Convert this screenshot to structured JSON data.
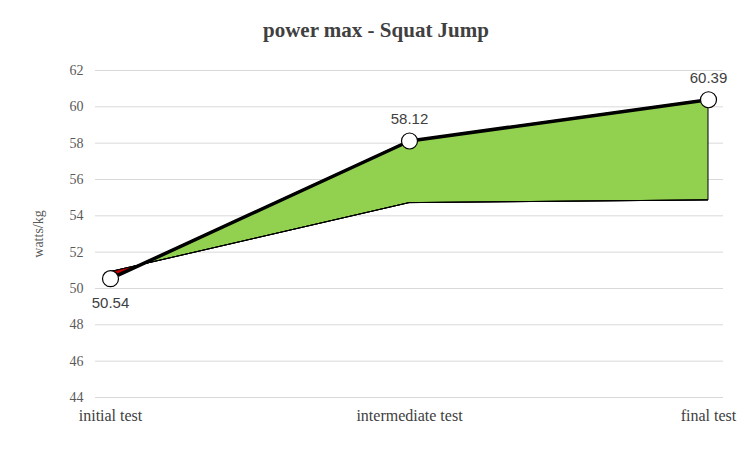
{
  "chart_data": {
    "type": "line",
    "title": "power max - Squat Jump",
    "y_label": "watts/kg",
    "categories": [
      "initial test",
      "intermediate test",
      "final test"
    ],
    "series": [
      {
        "type": "line",
        "values": [
          50.54,
          58.12,
          60.39
        ],
        "color": "#000000",
        "marker": "circle"
      },
      {
        "type": "band",
        "values": [
          50.9,
          54.7,
          54.85
        ],
        "colors": [
          "#92d050",
          "#c00000"
        ]
      }
    ],
    "ylim": [
      44,
      62
    ],
    "yticks": [
      44,
      46,
      48,
      50,
      52,
      54,
      56,
      58,
      60,
      62
    ],
    "grid": true,
    "data_labels": true
  }
}
